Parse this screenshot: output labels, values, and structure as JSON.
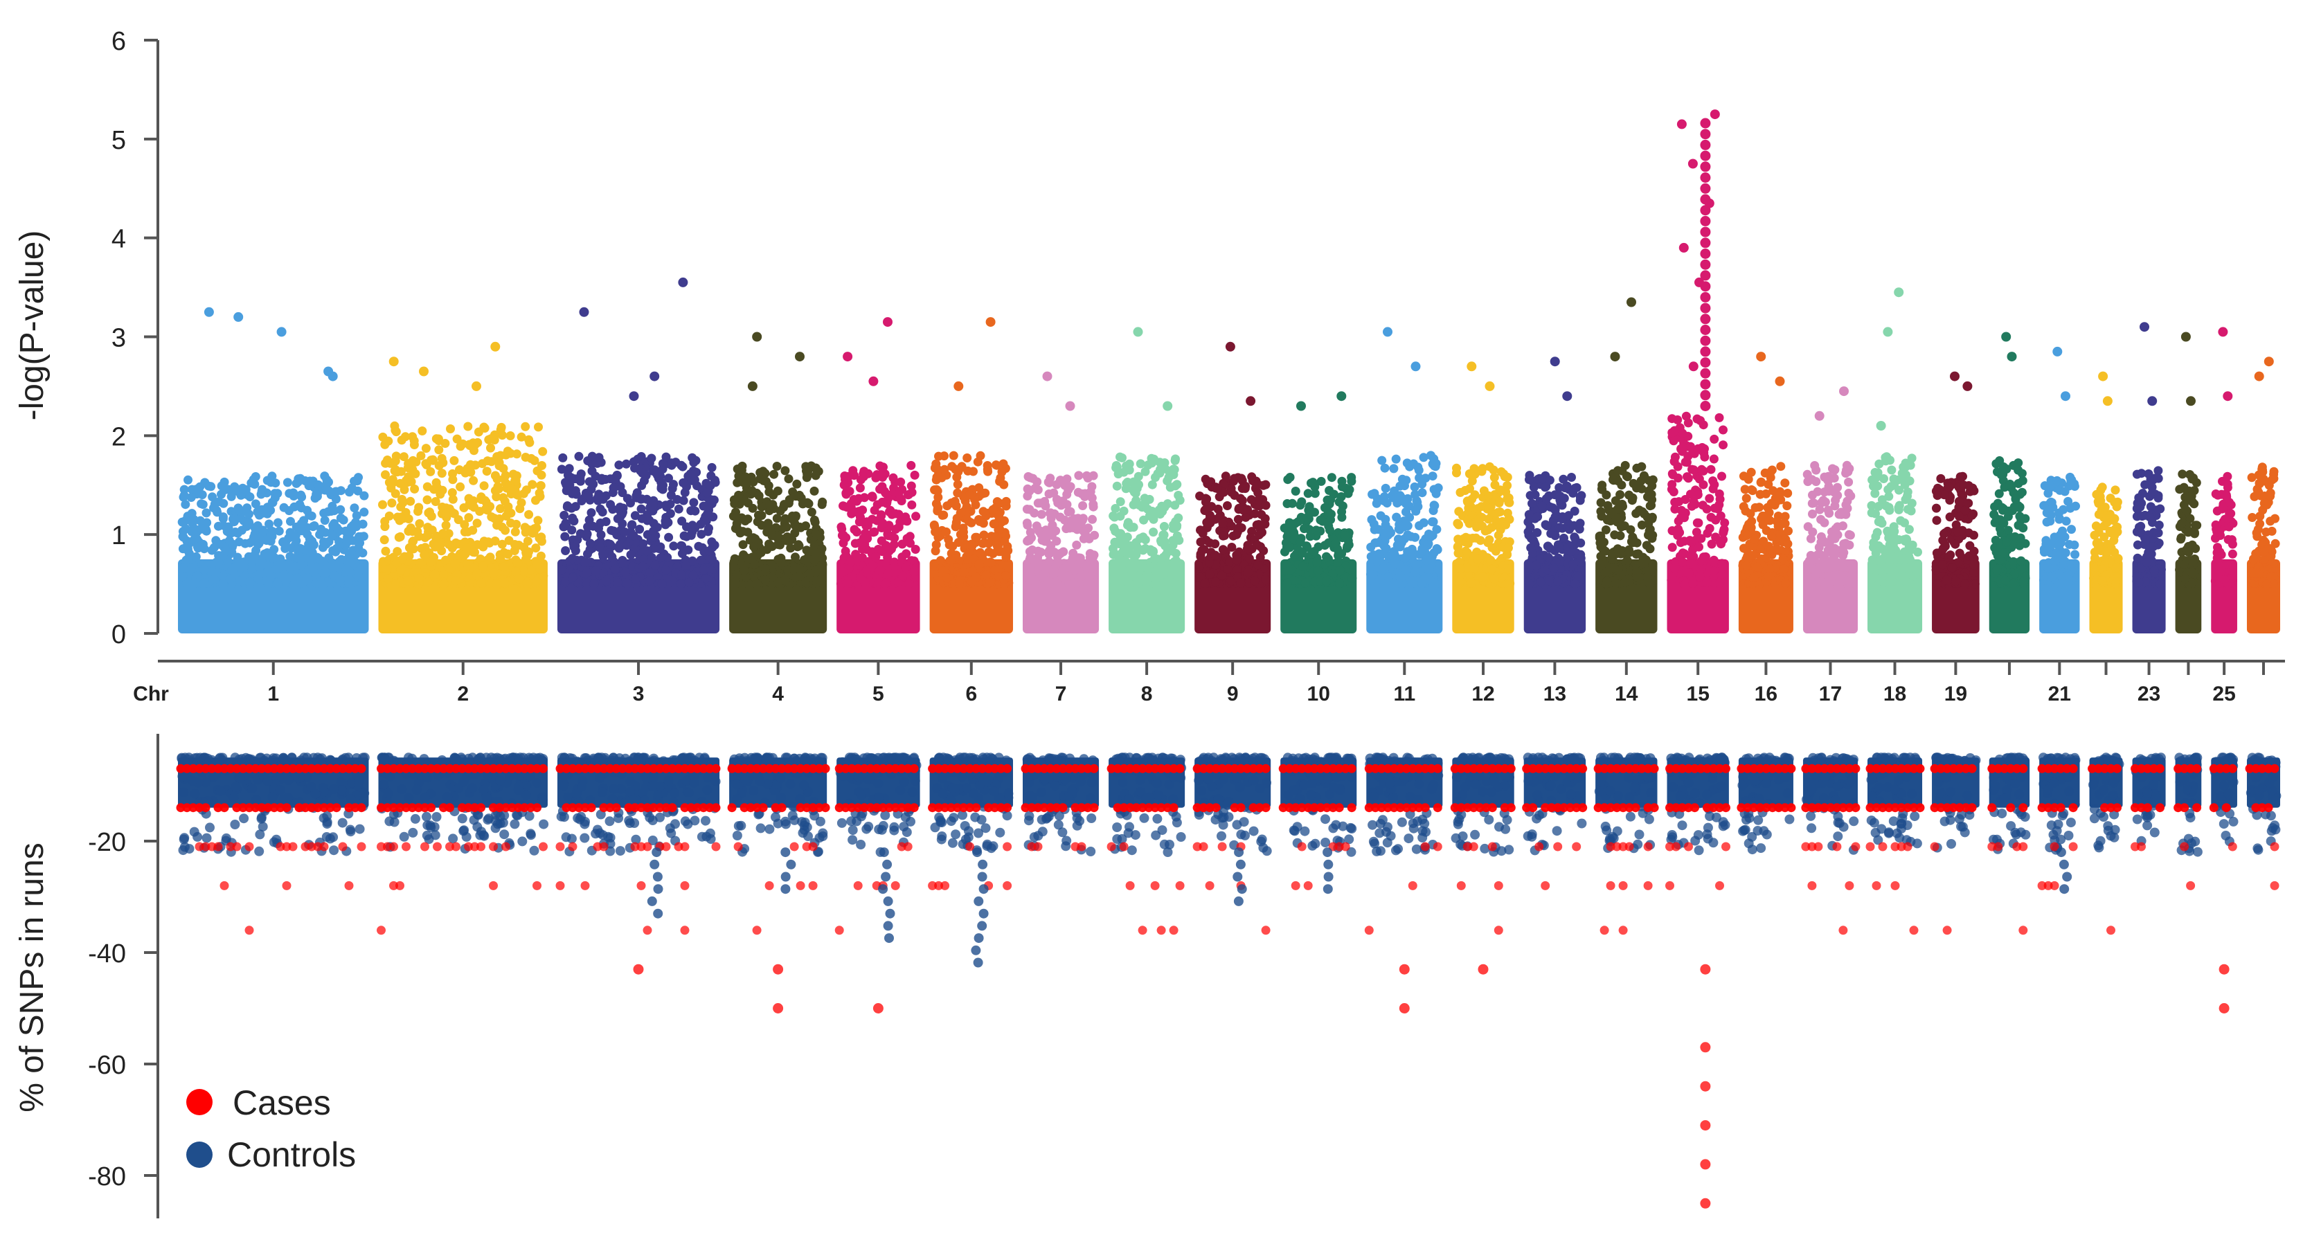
{
  "chart_data": [
    {
      "type": "scatter",
      "subtype": "manhattan",
      "ylabel": "-log(P-value)",
      "ylim": [
        0,
        6
      ],
      "yticks": [
        0,
        1,
        2,
        3,
        4,
        5,
        6
      ],
      "chr_axis_title": "Chr",
      "chromosomes": [
        {
          "chr": 1,
          "label": "1",
          "color": "#4a9ede",
          "base_max": 1.6,
          "peaks": [
            3.2,
            2.65,
            3.25,
            3.05,
            2.6
          ]
        },
        {
          "chr": 2,
          "label": "2",
          "color": "#f5bf25",
          "base_max": 2.1,
          "peaks": [
            2.65,
            2.9,
            2.75,
            2.5
          ]
        },
        {
          "chr": 3,
          "label": "3",
          "color": "#3f3c8e",
          "base_max": 1.8,
          "peaks": [
            2.4,
            3.55,
            3.25,
            2.6
          ]
        },
        {
          "chr": 4,
          "label": "4",
          "color": "#4a4a22",
          "base_max": 1.7,
          "peaks": [
            3.0,
            2.8,
            2.5
          ]
        },
        {
          "chr": 5,
          "label": "5",
          "color": "#d61a6e",
          "base_max": 1.7,
          "peaks": [
            2.55,
            3.15,
            2.8
          ]
        },
        {
          "chr": 6,
          "label": "6",
          "color": "#e8671e",
          "base_max": 1.8,
          "peaks": [
            2.5,
            3.15
          ]
        },
        {
          "chr": 7,
          "label": "7",
          "color": "#d688bd",
          "base_max": 1.6,
          "peaks": [
            2.6,
            2.3
          ]
        },
        {
          "chr": 8,
          "label": "8",
          "color": "#86d6ac",
          "base_max": 1.8,
          "peaks": [
            3.05,
            2.3
          ]
        },
        {
          "chr": 9,
          "label": "9",
          "color": "#7b1730",
          "base_max": 1.6,
          "peaks": [
            2.9,
            2.35
          ]
        },
        {
          "chr": 10,
          "label": "10",
          "color": "#217a5e",
          "base_max": 1.6,
          "peaks": [
            2.3,
            2.4
          ]
        },
        {
          "chr": 11,
          "label": "11",
          "color": "#4a9ede",
          "base_max": 1.8,
          "peaks": [
            3.05,
            2.7
          ]
        },
        {
          "chr": 12,
          "label": "12",
          "color": "#f5bf25",
          "base_max": 1.7,
          "peaks": [
            2.7,
            2.5
          ]
        },
        {
          "chr": 13,
          "label": "13",
          "color": "#3f3c8e",
          "base_max": 1.6,
          "peaks": [
            2.75,
            2.4
          ]
        },
        {
          "chr": 14,
          "label": "14",
          "color": "#4a4a22",
          "base_max": 1.7,
          "peaks": [
            2.8,
            3.35
          ]
        },
        {
          "chr": 15,
          "label": "15",
          "color": "#d61a6e",
          "base_max": 2.2,
          "peaks": [
            2.7,
            5.25,
            5.15,
            4.75,
            4.35,
            3.9,
            3.55
          ]
        },
        {
          "chr": 16,
          "label": "16",
          "color": "#e8671e",
          "base_max": 1.7,
          "peaks": [
            2.8,
            2.55
          ]
        },
        {
          "chr": 17,
          "label": "17",
          "color": "#d688bd",
          "base_max": 1.7,
          "peaks": [
            2.2,
            2.45
          ]
        },
        {
          "chr": 18,
          "label": "18",
          "color": "#86d6ac",
          "base_max": 1.8,
          "peaks": [
            3.05,
            3.45,
            2.1
          ]
        },
        {
          "chr": 19,
          "label": "19",
          "color": "#7b1730",
          "base_max": 1.6,
          "peaks": [
            2.6,
            2.5
          ]
        },
        {
          "chr": 20,
          "label": "",
          "color": "#217a5e",
          "base_max": 1.8,
          "peaks": [
            3.0,
            2.8
          ]
        },
        {
          "chr": 21,
          "label": "21",
          "color": "#4a9ede",
          "base_max": 1.6,
          "peaks": [
            2.85,
            2.4
          ]
        },
        {
          "chr": 22,
          "label": "",
          "color": "#f5bf25",
          "base_max": 1.5,
          "peaks": [
            2.6,
            2.35
          ]
        },
        {
          "chr": 23,
          "label": "23",
          "color": "#3f3c8e",
          "base_max": 1.7,
          "peaks": [
            3.1,
            2.35
          ]
        },
        {
          "chr": 24,
          "label": "",
          "color": "#4a4a22",
          "base_max": 1.7,
          "peaks": [
            3.0,
            2.35
          ]
        },
        {
          "chr": 25,
          "label": "25",
          "color": "#d61a6e",
          "base_max": 1.6,
          "peaks": [
            3.05,
            2.4
          ]
        },
        {
          "chr": 26,
          "label": "",
          "color": "#e8671e",
          "base_max": 1.7,
          "peaks": [
            2.6,
            2.75
          ]
        }
      ]
    },
    {
      "type": "scatter",
      "ylabel": "% of SNPs in runs",
      "ylim": [
        -85,
        0
      ],
      "yticks": [
        -20,
        -40,
        -60,
        -80
      ],
      "legend": [
        {
          "label": "Cases",
          "color": "#ff0000"
        },
        {
          "label": "Controls",
          "color": "#1f4e8c"
        }
      ],
      "series": [
        {
          "name": "Cases",
          "color": "#ff0000",
          "description": "Red points in bands at approximately -7, -14, -21, -28 and -36; extreme low values near chr 15",
          "band_levels": [
            -7,
            -14,
            -21,
            -28,
            -36
          ],
          "extreme_points": [
            {
              "chr": 15,
              "values": [
                -43,
                -57,
                -64,
                -71,
                -78,
                -85
              ]
            },
            {
              "chr": 25,
              "values": [
                -43,
                -50
              ]
            },
            {
              "chr": 4,
              "values": [
                -43,
                -50
              ]
            },
            {
              "chr": 5,
              "values": [
                -50
              ]
            },
            {
              "chr": 11,
              "values": [
                -43,
                -50
              ]
            },
            {
              "chr": 12,
              "values": [
                -43
              ]
            },
            {
              "chr": 3,
              "values": [
                -43
              ]
            }
          ]
        },
        {
          "name": "Controls",
          "color": "#1f4e8c",
          "description": "Dense blue points between about -5 and -20, with tails down to about -43",
          "tail_points": [
            {
              "chr": 6,
              "value": -43
            },
            {
              "chr": 5,
              "value": -39
            },
            {
              "chr": 3,
              "value": -33
            },
            {
              "chr": 9,
              "value": -31
            },
            {
              "chr": 10,
              "value": -30
            },
            {
              "chr": 4,
              "value": -30
            },
            {
              "chr": 21,
              "value": -30
            }
          ]
        }
      ]
    }
  ]
}
